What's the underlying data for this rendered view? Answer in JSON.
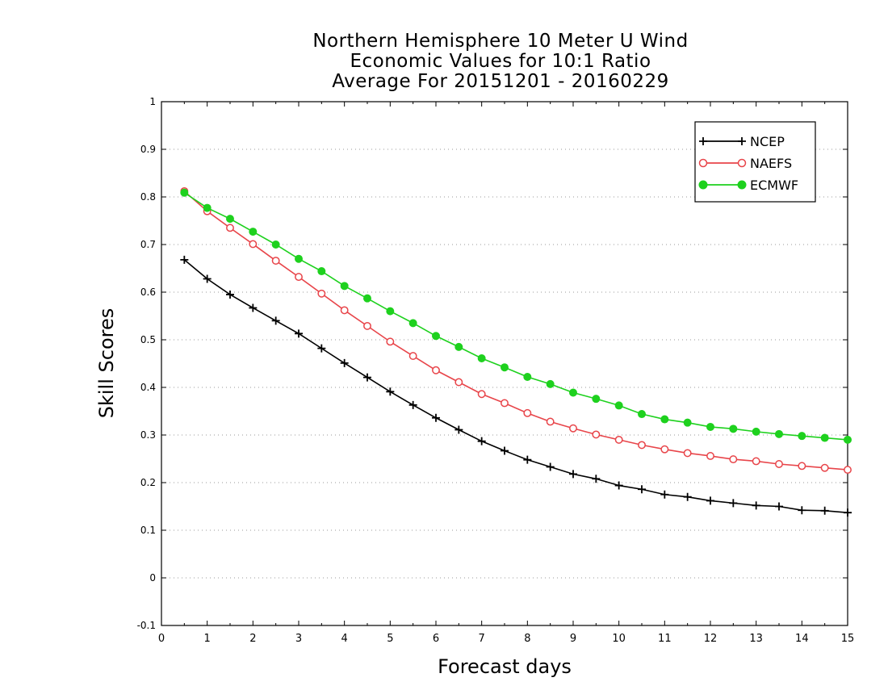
{
  "chart_data": {
    "type": "line",
    "title_lines": [
      "Northern Hemisphere 10 Meter U Wind",
      "Economic Values for 10:1 Ratio",
      "Average For 20151201 - 20160229"
    ],
    "xlabel": "Forecast days",
    "ylabel": "Skill Scores",
    "xlim": [
      0,
      15
    ],
    "ylim": [
      -0.1,
      1
    ],
    "xticks": [
      "0",
      "1",
      "2",
      "3",
      "4",
      "5",
      "6",
      "7",
      "8",
      "9",
      "10",
      "11",
      "12",
      "13",
      "14",
      "15"
    ],
    "yticks": [
      "-0.1",
      "0",
      "0.1",
      "0.2",
      "0.3",
      "0.4",
      "0.5",
      "0.6",
      "0.7",
      "0.8",
      "0.9",
      "1"
    ],
    "grid": "horizontal dotted",
    "legend_position": "top-right",
    "x": [
      0.5,
      1,
      1.5,
      2,
      2.5,
      3,
      3.5,
      4,
      4.5,
      5,
      5.5,
      6,
      6.5,
      7,
      7.5,
      8,
      8.5,
      9,
      9.5,
      10,
      10.5,
      11,
      11.5,
      12,
      12.5,
      13,
      13.5,
      14,
      14.5,
      15
    ],
    "series": [
      {
        "name": "NCEP",
        "color": "#000000",
        "marker": "plus",
        "values": [
          0.668,
          0.628,
          0.595,
          0.567,
          0.54,
          0.513,
          0.482,
          0.451,
          0.421,
          0.391,
          0.363,
          0.336,
          0.311,
          0.287,
          0.267,
          0.248,
          0.233,
          0.218,
          0.208,
          0.194,
          0.186,
          0.175,
          0.17,
          0.162,
          0.157,
          0.152,
          0.15,
          0.142,
          0.141,
          0.137
        ]
      },
      {
        "name": "NAEFS",
        "color": "#e8454a",
        "marker": "open-circle",
        "values": [
          0.812,
          0.77,
          0.735,
          0.701,
          0.666,
          0.632,
          0.597,
          0.562,
          0.529,
          0.496,
          0.466,
          0.436,
          0.411,
          0.386,
          0.367,
          0.346,
          0.328,
          0.314,
          0.301,
          0.29,
          0.279,
          0.27,
          0.262,
          0.256,
          0.249,
          0.245,
          0.239,
          0.235,
          0.231,
          0.227
        ]
      },
      {
        "name": "ECMWF",
        "color": "#1ed11e",
        "marker": "filled-circle",
        "values": [
          0.809,
          0.777,
          0.754,
          0.727,
          0.7,
          0.67,
          0.644,
          0.613,
          0.587,
          0.56,
          0.535,
          0.508,
          0.485,
          0.461,
          0.442,
          0.422,
          0.407,
          0.389,
          0.376,
          0.362,
          0.344,
          0.333,
          0.326,
          0.317,
          0.313,
          0.307,
          0.302,
          0.298,
          0.294,
          0.29
        ]
      }
    ]
  }
}
